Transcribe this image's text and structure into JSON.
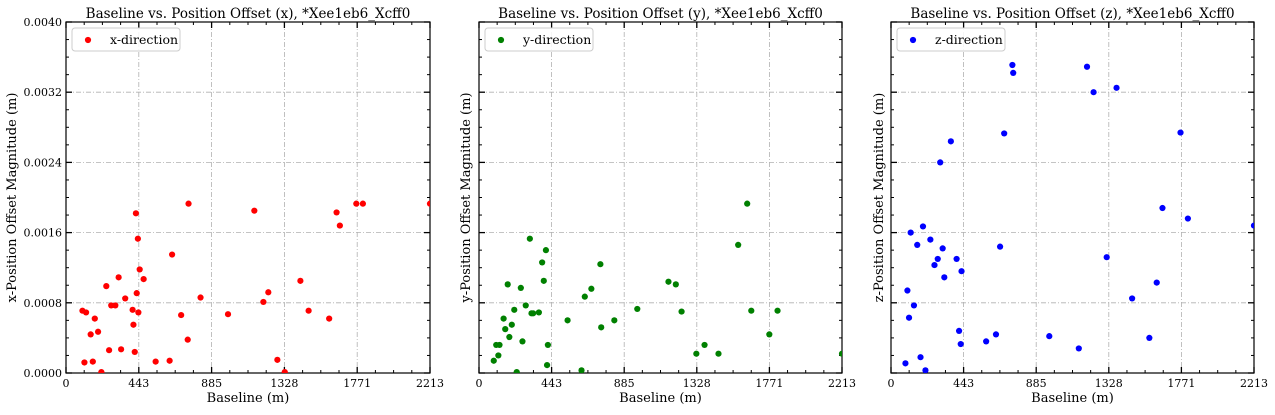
{
  "chart_data": [
    {
      "type": "scatter",
      "title": "Baseline vs. Position Offset (x), *Xee1eb6_Xcff0",
      "xlabel": "Baseline (m)",
      "ylabel": "x-Position Offset Magnitude (m)",
      "xlim": [
        0,
        2213
      ],
      "ylim": [
        0,
        0.004
      ],
      "xticks": [
        "0",
        "443",
        "885",
        "1328",
        "1771",
        "2213"
      ],
      "yticks": [
        "0.0000",
        "0.0008",
        "0.0016",
        "0.0024",
        "0.0032",
        "0.0040"
      ],
      "grid": true,
      "legend_position": "top-left",
      "series": [
        {
          "name": "x-direction",
          "color": "#ff0000",
          "x": [
            100,
            112,
            122,
            150,
            163,
            175,
            195,
            215,
            245,
            262,
            275,
            300,
            320,
            335,
            360,
            405,
            410,
            418,
            425,
            430,
            437,
            440,
            448,
            472,
            545,
            630,
            645,
            700,
            740,
            745,
            818,
            985,
            1145,
            1200,
            1230,
            1285,
            1330,
            1425,
            1475,
            1600,
            1645,
            1665,
            1765,
            1805,
            2213
          ],
          "y": [
            0.00071,
            0.00012,
            0.00069,
            0.00044,
            0.00013,
            0.00062,
            0.00047,
            1e-05,
            0.00099,
            0.00026,
            0.00077,
            0.00077,
            0.00109,
            0.00027,
            0.00085,
            0.00072,
            0.00055,
            0.00024,
            0.00182,
            0.00091,
            0.00153,
            0.00069,
            0.00118,
            0.00107,
            0.00013,
            0.00014,
            0.00135,
            0.00066,
            0.00038,
            0.00193,
            0.00086,
            0.00067,
            0.00185,
            0.00081,
            0.00092,
            0.00015,
            1e-05,
            0.00105,
            0.00071,
            0.00062,
            0.00183,
            0.00168,
            0.00193,
            0.00193,
            0.00193
          ]
        }
      ]
    },
    {
      "type": "scatter",
      "title": "Baseline vs. Position Offset (y), *Xee1eb6_Xcff0",
      "xlabel": "Baseline (m)",
      "ylabel": "y-Position Offset Magnitude (m)",
      "xlim": [
        0,
        2213
      ],
      "ylim": [
        0,
        0.004
      ],
      "xticks": [
        "0",
        "443",
        "885",
        "1328",
        "1771",
        "2213"
      ],
      "yticks": [
        "0.0000",
        "0.0008",
        "0.0016",
        "0.0024",
        "0.0032",
        "0.0040"
      ],
      "grid": true,
      "legend_position": "top-left",
      "series": [
        {
          "name": "y-direction",
          "color": "#008000",
          "x": [
            90,
            105,
            118,
            125,
            150,
            160,
            175,
            185,
            200,
            215,
            230,
            255,
            265,
            285,
            310,
            320,
            330,
            365,
            385,
            395,
            408,
            415,
            420,
            540,
            625,
            645,
            685,
            740,
            745,
            825,
            965,
            1155,
            1200,
            1235,
            1325,
            1375,
            1460,
            1580,
            1635,
            1660,
            1770,
            1820,
            2213
          ],
          "y": [
            0.00014,
            0.00032,
            0.0002,
            0.00032,
            0.00062,
            0.0005,
            0.00101,
            0.00041,
            0.00055,
            0.00072,
            1e-05,
            0.00097,
            0.00036,
            0.00077,
            0.00153,
            0.00068,
            0.00068,
            0.00069,
            0.00126,
            0.00105,
            0.0014,
            9e-05,
            0.00032,
            0.0006,
            3e-05,
            0.00087,
            0.00096,
            0.00124,
            0.00052,
            0.0006,
            0.00073,
            0.00104,
            0.00101,
            0.0007,
            0.00022,
            0.00032,
            0.00022,
            0.00146,
            0.00193,
            0.00071,
            0.00044,
            0.00071,
            0.00022
          ]
        }
      ]
    },
    {
      "type": "scatter",
      "title": "Baseline vs. Position Offset (z), *Xee1eb6_Xcff0",
      "xlabel": "Baseline (m)",
      "ylabel": "z-Position Offset Magnitude (m)",
      "xlim": [
        0,
        2213
      ],
      "ylim": [
        0,
        0.004
      ],
      "xticks": [
        "0",
        "443",
        "885",
        "1328",
        "1771",
        "2213"
      ],
      "yticks": [
        "0.0000",
        "0.0008",
        "0.0016",
        "0.0024",
        "0.0032",
        "0.0040"
      ],
      "grid": true,
      "legend_position": "top-left",
      "series": [
        {
          "name": "z-direction",
          "color": "#0000ff",
          "x": [
            88,
            100,
            110,
            120,
            140,
            160,
            180,
            195,
            210,
            240,
            265,
            285,
            300,
            315,
            325,
            365,
            400,
            415,
            425,
            430,
            580,
            640,
            665,
            690,
            740,
            745,
            965,
            1145,
            1195,
            1235,
            1315,
            1375,
            1470,
            1575,
            1620,
            1655,
            1765,
            1810,
            2213
          ],
          "y": [
            0.00011,
            0.00094,
            0.00063,
            0.0016,
            0.00077,
            0.00146,
            0.00018,
            0.00167,
            3e-05,
            0.00152,
            0.00123,
            0.0013,
            0.0024,
            0.00142,
            0.00109,
            0.00264,
            0.0013,
            0.00048,
            0.00033,
            0.00116,
            0.00036,
            0.00044,
            0.00144,
            0.00273,
            0.00351,
            0.00342,
            0.00042,
            0.00028,
            0.00349,
            0.0032,
            0.00132,
            0.00325,
            0.00085,
            0.0004,
            0.00103,
            0.00188,
            0.00274,
            0.00176,
            0.00168
          ]
        }
      ]
    }
  ]
}
